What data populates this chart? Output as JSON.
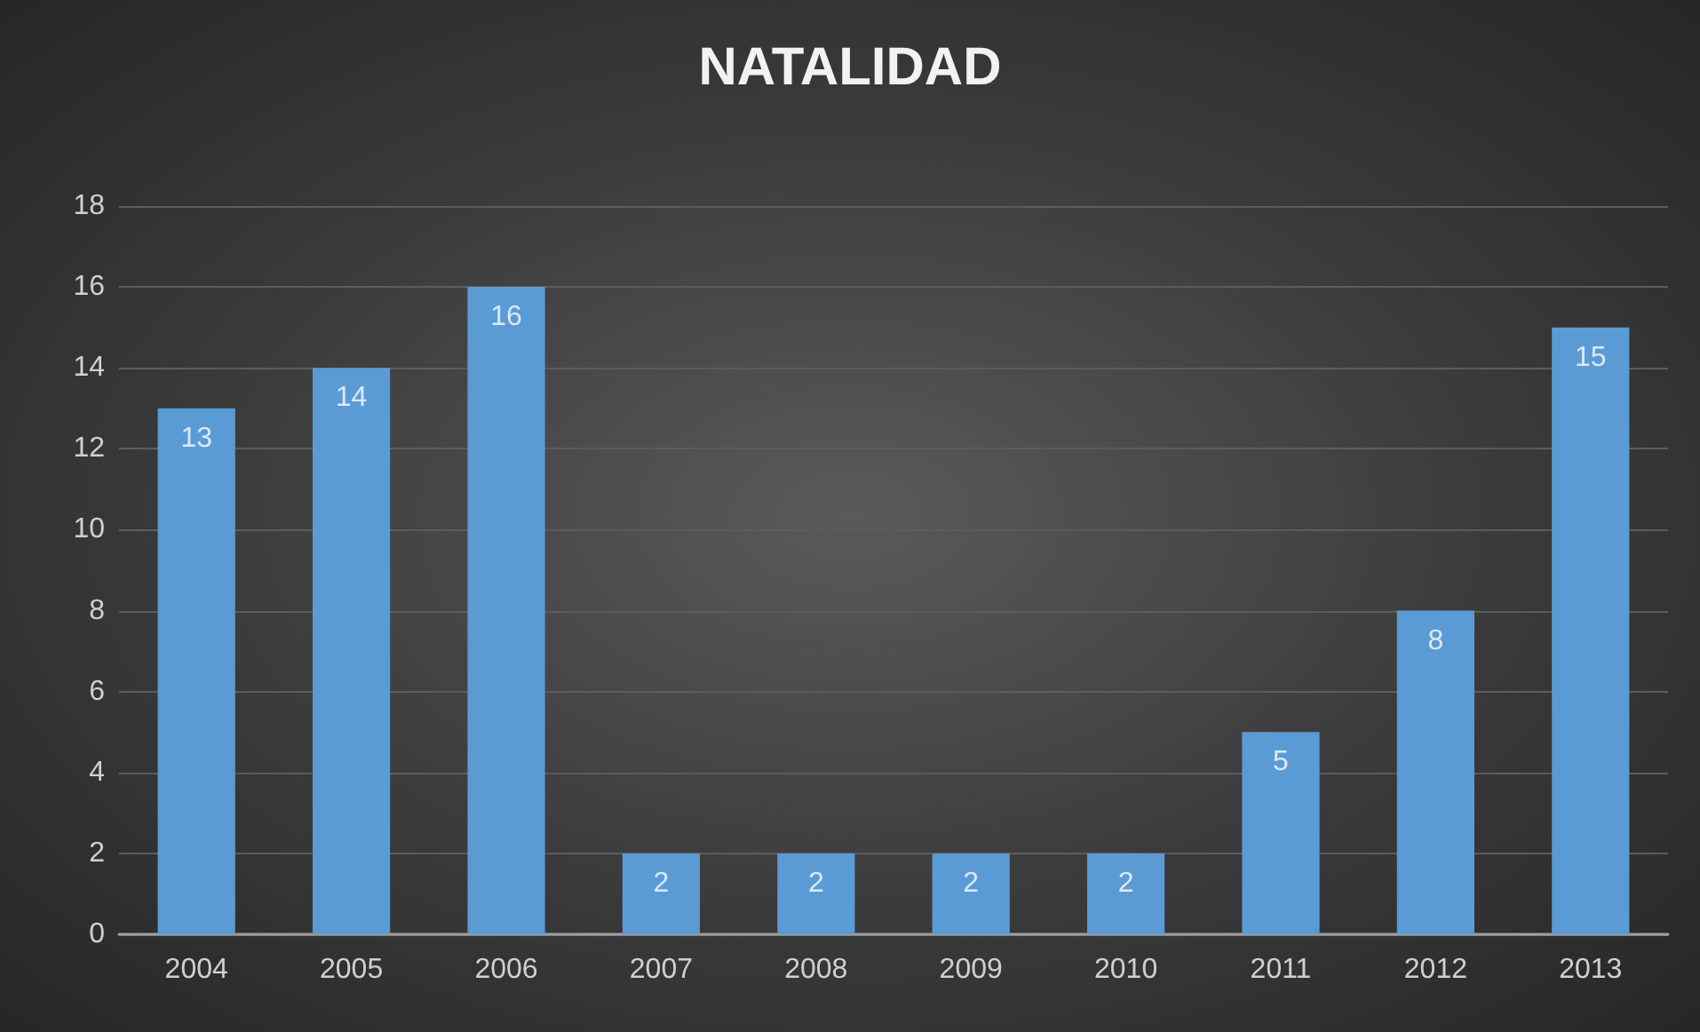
{
  "chart_data": {
    "type": "bar",
    "title": "NATALIDAD",
    "categories": [
      "2004",
      "2005",
      "2006",
      "2007",
      "2008",
      "2009",
      "2010",
      "2011",
      "2012",
      "2013"
    ],
    "values": [
      13,
      14,
      16,
      2,
      2,
      2,
      2,
      5,
      8,
      15
    ],
    "color": "#5b9bd5",
    "ylim": [
      0,
      18
    ],
    "yticks": [
      0,
      2,
      4,
      6,
      8,
      10,
      12,
      14,
      16,
      18
    ],
    "grid": "y",
    "data_labels": true
  }
}
